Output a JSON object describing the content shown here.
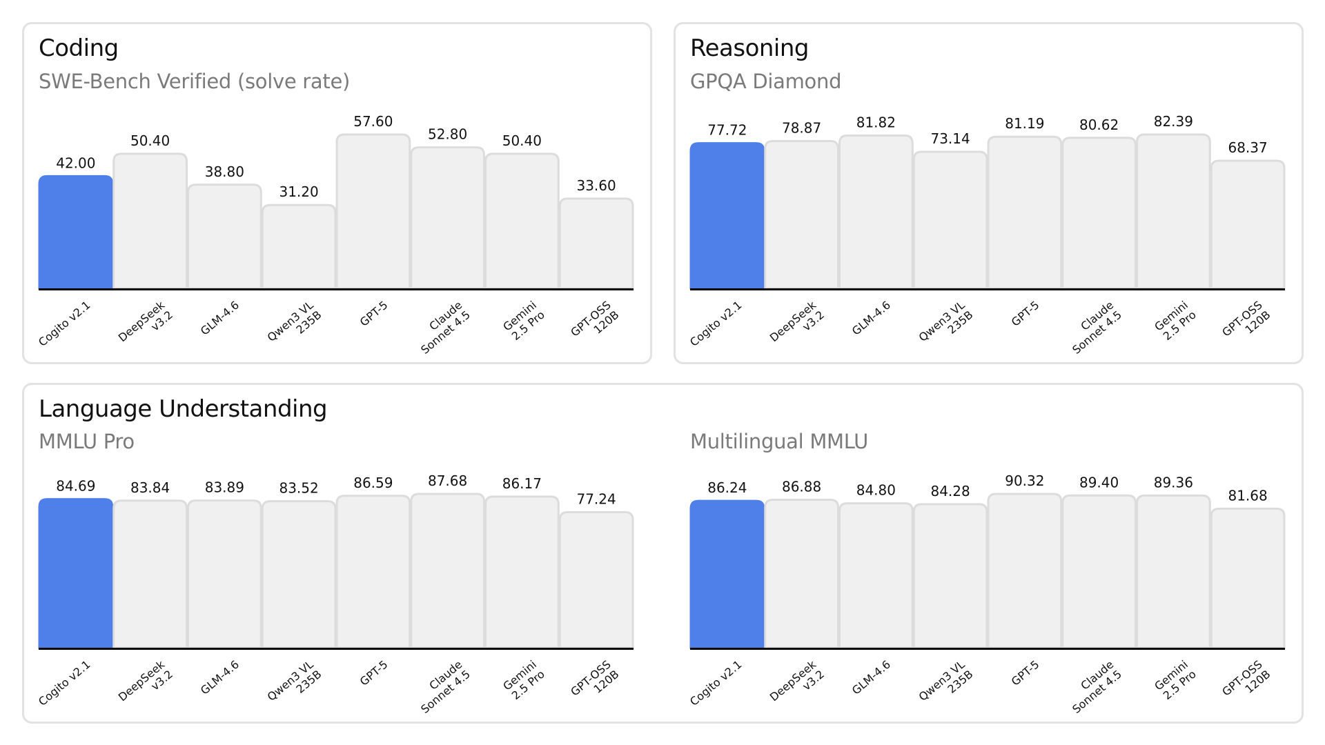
{
  "panels": [
    {
      "title": "Coding",
      "subtitle": "SWE-Bench Verified (solve rate)"
    },
    {
      "title": "Reasoning",
      "subtitle": "GPQA Diamond"
    },
    {
      "title": "Language Understanding",
      "subtitle": "MMLU Pro",
      "subtitle2": "Multilingual MMLU"
    }
  ],
  "colors": {
    "highlight": "#4f7fe8",
    "bar": "#f0f0f0",
    "bar_border": "#dcdcdc",
    "axis": "#000000"
  },
  "chart_data": [
    {
      "type": "bar",
      "title": "SWE-Bench Verified (solve rate)",
      "categories": [
        [
          "Cogito v2.1"
        ],
        [
          "DeepSeek",
          "v3.2"
        ],
        [
          "GLM-4.6"
        ],
        [
          "Qwen3 VL",
          "235B"
        ],
        [
          "GPT-5"
        ],
        [
          "Claude",
          "Sonnet 4.5"
        ],
        [
          "Gemini",
          "2.5 Pro"
        ],
        [
          "GPT-OSS",
          "120B"
        ]
      ],
      "values": [
        42.0,
        50.4,
        38.8,
        31.2,
        57.6,
        52.8,
        50.4,
        33.6
      ],
      "value_labels": [
        "42.00",
        "50.40",
        "38.80",
        "31.20",
        "57.60",
        "52.80",
        "50.40",
        "33.60"
      ],
      "highlight_index": 0,
      "ylim": [
        0,
        57.6
      ],
      "grid": false
    },
    {
      "type": "bar",
      "title": "GPQA Diamond",
      "categories": [
        [
          "Cogito v2.1"
        ],
        [
          "DeepSeek",
          "v3.2"
        ],
        [
          "GLM-4.6"
        ],
        [
          "Qwen3 VL",
          "235B"
        ],
        [
          "GPT-5"
        ],
        [
          "Claude",
          "Sonnet 4.5"
        ],
        [
          "Gemini",
          "2.5 Pro"
        ],
        [
          "GPT-OSS",
          "120B"
        ]
      ],
      "values": [
        77.72,
        78.87,
        81.82,
        73.14,
        81.19,
        80.62,
        82.39,
        68.37
      ],
      "value_labels": [
        "77.72",
        "78.87",
        "81.82",
        "73.14",
        "81.19",
        "80.62",
        "82.39",
        "68.37"
      ],
      "highlight_index": 0,
      "ylim": [
        0,
        82.39
      ],
      "grid": false
    },
    {
      "type": "bar",
      "title": "MMLU Pro",
      "categories": [
        [
          "Cogito v2.1"
        ],
        [
          "DeepSeek",
          "v3.2"
        ],
        [
          "GLM-4.6"
        ],
        [
          "Qwen3 VL",
          "235B"
        ],
        [
          "GPT-5"
        ],
        [
          "Claude",
          "Sonnet 4.5"
        ],
        [
          "Gemini",
          "2.5 Pro"
        ],
        [
          "GPT-OSS",
          "120B"
        ]
      ],
      "values": [
        84.69,
        83.84,
        83.89,
        83.52,
        86.59,
        87.68,
        86.17,
        77.24
      ],
      "value_labels": [
        "84.69",
        "83.84",
        "83.89",
        "83.52",
        "86.59",
        "87.68",
        "86.17",
        "77.24"
      ],
      "highlight_index": 0,
      "ylim": [
        0,
        87.68
      ],
      "grid": false
    },
    {
      "type": "bar",
      "title": "Multilingual MMLU",
      "categories": [
        [
          "Cogito v2.1"
        ],
        [
          "DeepSeek",
          "v3.2"
        ],
        [
          "GLM-4.6"
        ],
        [
          "Qwen3 VL",
          "235B"
        ],
        [
          "GPT-5"
        ],
        [
          "Claude",
          "Sonnet 4.5"
        ],
        [
          "Gemini",
          "2.5 Pro"
        ],
        [
          "GPT-OSS",
          "120B"
        ]
      ],
      "values": [
        86.24,
        86.88,
        84.8,
        84.28,
        90.32,
        89.4,
        89.36,
        81.68
      ],
      "value_labels": [
        "86.24",
        "86.88",
        "84.80",
        "84.28",
        "90.32",
        "89.40",
        "89.36",
        "81.68"
      ],
      "highlight_index": 0,
      "ylim": [
        0,
        90.32
      ],
      "grid": false
    }
  ]
}
